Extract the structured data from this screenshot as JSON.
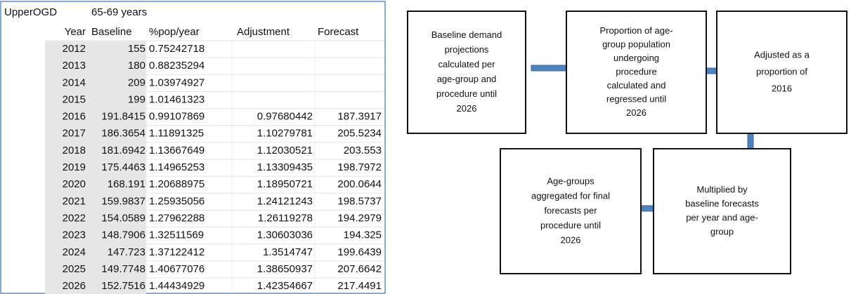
{
  "table": {
    "title": [
      "UpperOGD",
      "65-69 years"
    ],
    "header": [
      "Year",
      "Baseline",
      "%pop/year",
      "Adjustment",
      "Forecast"
    ],
    "rows": [
      [
        "2012",
        "155",
        "0.75242718",
        null,
        null
      ],
      [
        "2013",
        "180",
        "0.88235294",
        null,
        null
      ],
      [
        "2014",
        "209",
        "1.03974927",
        null,
        null
      ],
      [
        "2015",
        "199",
        "1.01461323",
        null,
        null
      ],
      [
        "2016",
        "191.8415",
        "0.99107869",
        "0.97680442",
        "187.3917"
      ],
      [
        "2017",
        "186.3654",
        "1.11891325",
        "1.10279781",
        "205.5234"
      ],
      [
        "2018",
        "181.6942",
        "1.13667649",
        "1.12030521",
        "203.553"
      ],
      [
        "2019",
        "175.4463",
        "1.14965253",
        "1.13309435",
        "198.7972"
      ],
      [
        "2020",
        "168.191",
        "1.20688975",
        "1.18950721",
        "200.0644"
      ],
      [
        "2021",
        "159.9837",
        "1.25935056",
        "1.24121243",
        "198.5737"
      ],
      [
        "2022",
        "154.0589",
        "1.27962288",
        "1.26119278",
        "194.2979"
      ],
      [
        "2023",
        "148.7906",
        "1.32511569",
        "1.30603036",
        "194.325"
      ],
      [
        "2024",
        "147.723",
        "1.37122412",
        "1.3514747",
        "199.6439"
      ],
      [
        "2025",
        "149.7748",
        "1.40677076",
        "1.38650937",
        "207.6642"
      ],
      [
        "2026",
        "152.7516",
        "1.44434929",
        "1.42354667",
        "217.4491"
      ]
    ]
  },
  "nodes": [
    {
      "lines": [
        "Baseline demand",
        "projections",
        "calculated per",
        "age-group and",
        "procedure until",
        "2026"
      ]
    },
    {
      "lines": [
        "Proportion of age-",
        "group population",
        "undergoing",
        "procedure",
        "calculated and",
        "regressed until",
        "2026"
      ]
    },
    {
      "lines": [
        "Adjusted as a",
        "proportion of",
        "2016"
      ]
    },
    {
      "lines": [
        "Multiplied by",
        "baseline forecasts",
        "per year and age-",
        "group"
      ]
    },
    {
      "lines": [
        "Age-groups",
        "aggregated for final",
        "forecasts per",
        "procedure until",
        "2026"
      ]
    }
  ]
}
